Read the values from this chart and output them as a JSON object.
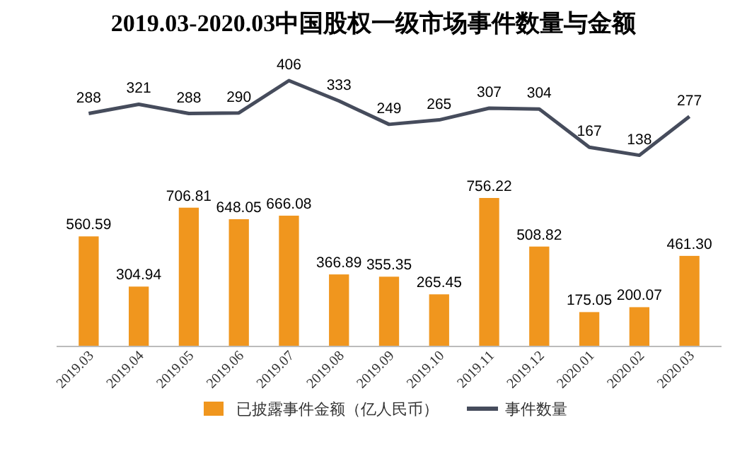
{
  "chart_data": [
    {
      "type": "line",
      "title": "2019.03-2020.03中国股权一级市场事件数量与金额",
      "categories": [
        null,
        null,
        null,
        null,
        null,
        null,
        null,
        null,
        null,
        null,
        null,
        null,
        null
      ],
      "series": [
        {
          "name": "事件数量",
          "color": "#464c5c",
          "values": [
            288,
            321,
            288,
            290,
            406,
            333,
            249,
            265,
            307,
            304,
            167,
            138,
            277
          ]
        }
      ],
      "tick_labels": false,
      "data_labels": true,
      "legend": "bottom",
      "grid": false,
      "marker": "none"
    },
    {
      "type": "bar",
      "categories": [
        "2019.03",
        "2019.04",
        "2019.05",
        "2019.06",
        "2019.07",
        "2019.08",
        "2019.09",
        "2019.10",
        "2019.11",
        "2019.12",
        "2020.01",
        "2020.02",
        "2020.03"
      ],
      "series": [
        {
          "name": "已披露事件金额（亿人民币）",
          "color": "#f0961e",
          "values": [
            560.59,
            304.94,
            706.81,
            648.05,
            666.08,
            366.89,
            355.35,
            265.45,
            756.22,
            508.82,
            175.05,
            200.07,
            461.3
          ],
          "value_labels": [
            "560.59",
            "304.94",
            "706.81",
            "648.05",
            "666.08",
            "366.89",
            "355.35",
            "265.45",
            "756.22",
            "508.82",
            "175.05",
            "200.07",
            "461.30"
          ]
        }
      ],
      "tick_labels": "x",
      "data_labels": true,
      "legend": "bottom",
      "grid": false
    }
  ]
}
